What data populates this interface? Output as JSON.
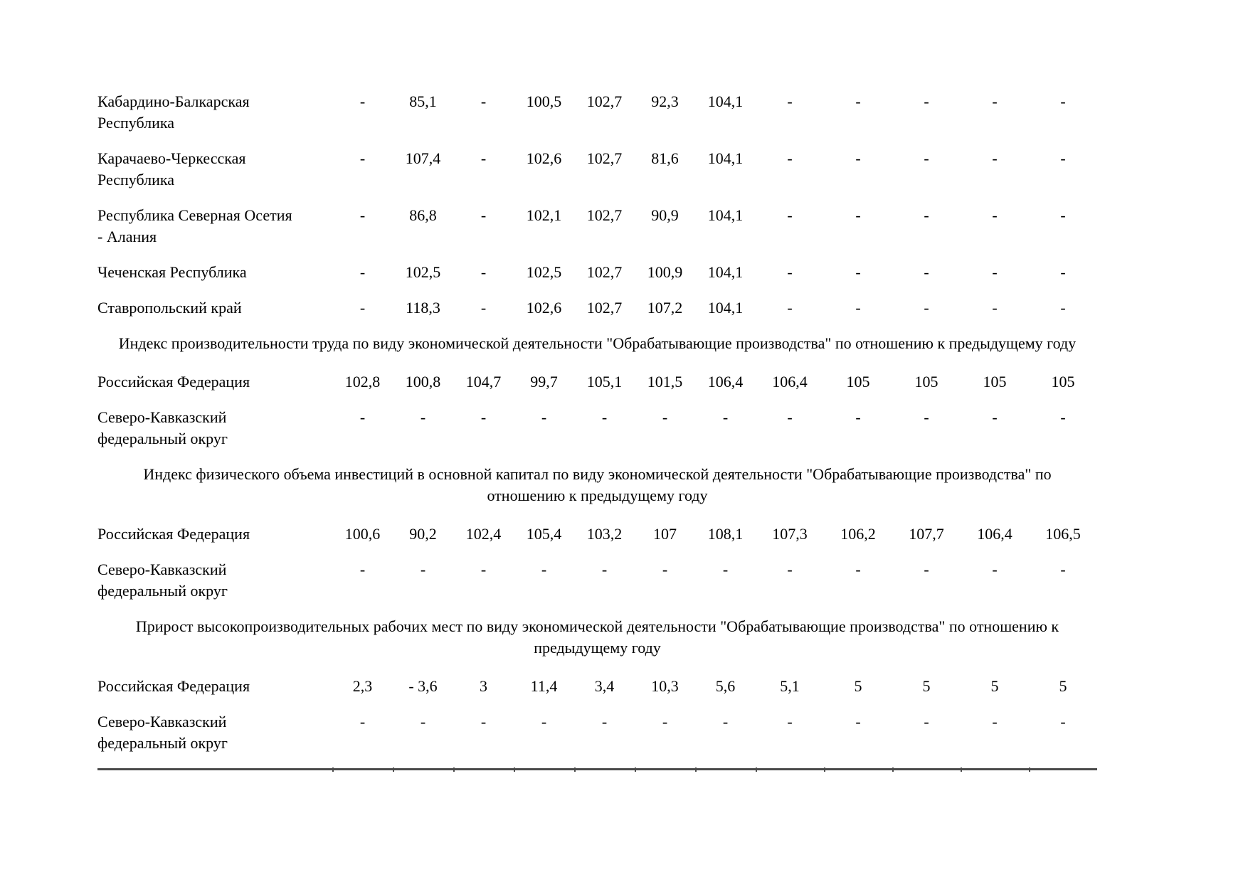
{
  "colors": {
    "text": "#000000",
    "rule": "#4a4a4a",
    "background": "#ffffff"
  },
  "table": {
    "region_rows": [
      {
        "name": "Кабардино-Балкарская\nРеспублика",
        "values": [
          "-",
          "85,1",
          "-",
          "100,5",
          "102,7",
          "92,3",
          "104,1",
          "-",
          "-",
          "-",
          "-",
          "-"
        ]
      },
      {
        "name": "Карачаево-Черкесская\nРеспублика",
        "values": [
          "-",
          "107,4",
          "-",
          "102,6",
          "102,7",
          "81,6",
          "104,1",
          "-",
          "-",
          "-",
          "-",
          "-"
        ]
      },
      {
        "name": "Республика Северная Осетия\n- Алания",
        "values": [
          "-",
          "86,8",
          "-",
          "102,1",
          "102,7",
          "90,9",
          "104,1",
          "-",
          "-",
          "-",
          "-",
          "-"
        ]
      },
      {
        "name": "Чеченская Республика",
        "values": [
          "-",
          "102,5",
          "-",
          "102,5",
          "102,7",
          "100,9",
          "104,1",
          "-",
          "-",
          "-",
          "-",
          "-"
        ]
      },
      {
        "name": "Ставропольский край",
        "values": [
          "-",
          "118,3",
          "-",
          "102,6",
          "102,7",
          "107,2",
          "104,1",
          "-",
          "-",
          "-",
          "-",
          "-"
        ]
      }
    ],
    "sections": [
      {
        "title": "Индекс производительности труда по виду экономической деятельности \"Обрабатывающие производства\" по отношению к предыдущему году",
        "rows": [
          {
            "name": "Российская Федерация",
            "values": [
              "102,8",
              "100,8",
              "104,7",
              "99,7",
              "105,1",
              "101,5",
              "106,4",
              "106,4",
              "105",
              "105",
              "105",
              "105"
            ]
          },
          {
            "name": "Северо-Кавказский\nфедеральный округ",
            "values": [
              "-",
              "-",
              "-",
              "-",
              "-",
              "-",
              "-",
              "-",
              "-",
              "-",
              "-",
              "-"
            ]
          }
        ]
      },
      {
        "title": "Индекс физического объема инвестиций в основной капитал по виду экономической деятельности \"Обрабатывающие производства\" по отношению к предыдущему году",
        "rows": [
          {
            "name": "Российская Федерация",
            "values": [
              "100,6",
              "90,2",
              "102,4",
              "105,4",
              "103,2",
              "107",
              "108,1",
              "107,3",
              "106,2",
              "107,7",
              "106,4",
              "106,5"
            ]
          },
          {
            "name": "Северо-Кавказский\nфедеральный округ",
            "values": [
              "-",
              "-",
              "-",
              "-",
              "-",
              "-",
              "-",
              "-",
              "-",
              "-",
              "-",
              "-"
            ]
          }
        ]
      },
      {
        "title": "Прирост высокопроизводительных рабочих мест по виду экономической деятельности \"Обрабатывающие производства\" по отношению к предыдущему году",
        "rows": [
          {
            "name": "Российская Федерация",
            "values": [
              "2,3",
              "- 3,6",
              "3",
              "11,4",
              "3,4",
              "10,3",
              "5,6",
              "5,1",
              "5",
              "5",
              "5",
              "5"
            ]
          },
          {
            "name": "Северо-Кавказский\nфедеральный округ",
            "values": [
              "-",
              "-",
              "-",
              "-",
              "-",
              "-",
              "-",
              "-",
              "-",
              "-",
              "-",
              "-"
            ]
          }
        ]
      }
    ]
  }
}
